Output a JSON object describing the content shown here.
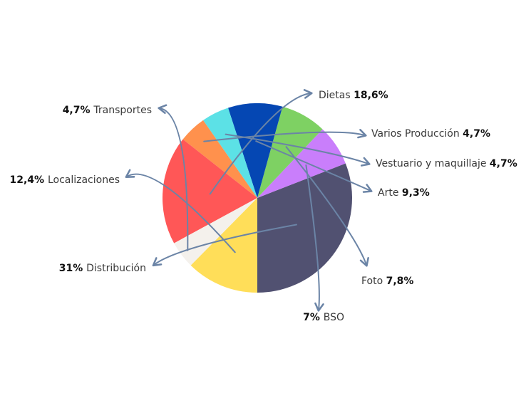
{
  "chart_data": {
    "type": "pie",
    "title": "",
    "start_angle_deg": 270,
    "direction": "counterclockwise",
    "arrow_color": "#6b84a6",
    "slices": [
      {
        "name": "Distribución",
        "value": 31,
        "label": "31%",
        "color": "#515171"
      },
      {
        "name": "BSO",
        "value": 7,
        "label": "7%",
        "color": "#c97efb"
      },
      {
        "name": "Foto",
        "value": 7.8,
        "label": "7,8%",
        "color": "#7ed163"
      },
      {
        "name": "Arte",
        "value": 9.3,
        "label": "9,3%",
        "color": "#0547b3"
      },
      {
        "name": "Vestuario y maquillaje",
        "value": 4.7,
        "label": "4,7%",
        "color": "#5ce1e6"
      },
      {
        "name": "Varios Producción",
        "value": 4.7,
        "label": "4,7%",
        "color": "#ff914d"
      },
      {
        "name": "Dietas",
        "value": 18.6,
        "label": "18,6%",
        "color": "#ff5757"
      },
      {
        "name": "Transportes",
        "value": 4.7,
        "label": "4,7%",
        "color": "#f4f1ec"
      },
      {
        "name": "Localizaciones",
        "value": 12.4,
        "label": "12,4%",
        "color": "#ffde59"
      }
    ]
  }
}
